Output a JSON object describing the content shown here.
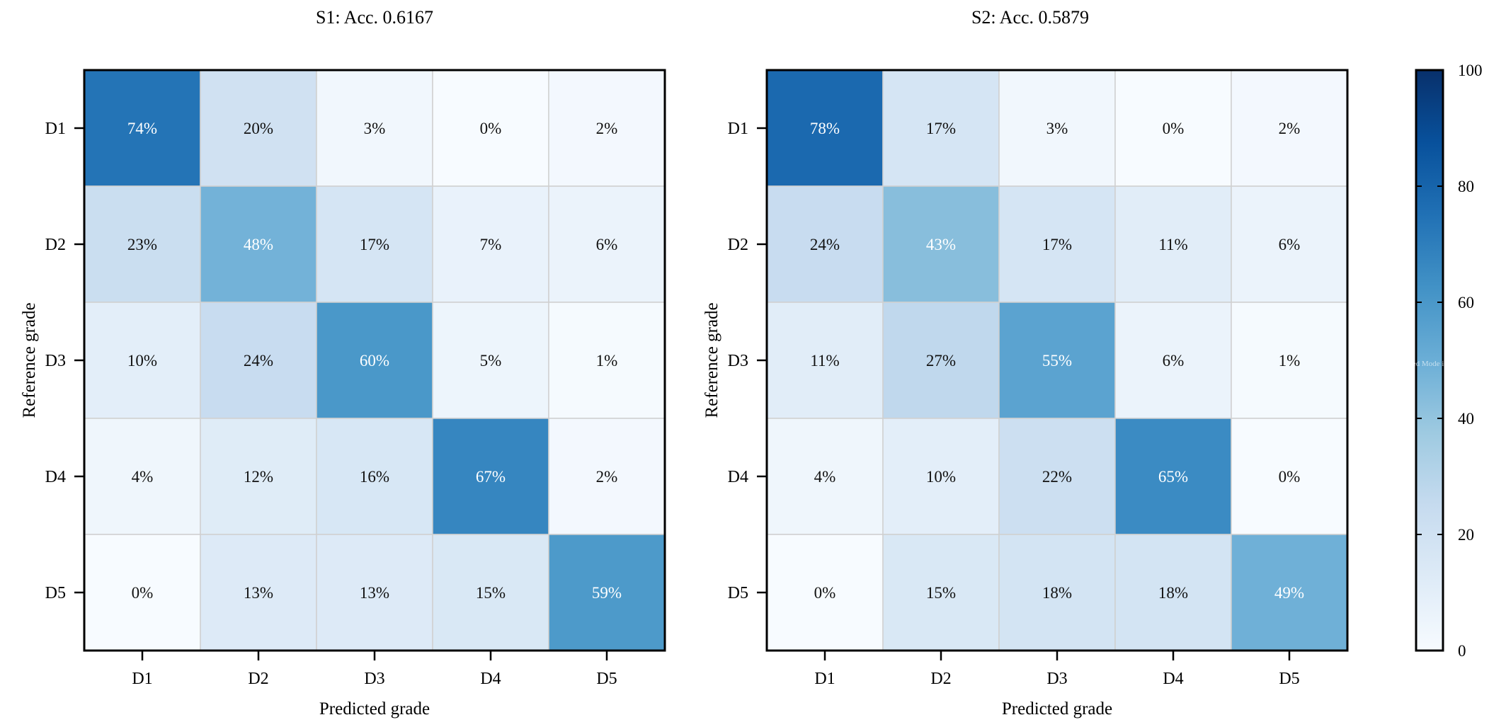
{
  "chart_data": [
    {
      "type": "heatmap",
      "title": "S1: Acc. 0.6167",
      "xlabel": "Predicted grade",
      "ylabel": "Reference grade",
      "x_categories": [
        "D1",
        "D2",
        "D3",
        "D4",
        "D5"
      ],
      "y_categories": [
        "D1",
        "D2",
        "D3",
        "D4",
        "D5"
      ],
      "values": [
        [
          74,
          20,
          3,
          0,
          2
        ],
        [
          23,
          48,
          17,
          7,
          6
        ],
        [
          10,
          24,
          60,
          5,
          1
        ],
        [
          4,
          12,
          16,
          67,
          2
        ],
        [
          0,
          13,
          13,
          15,
          59
        ]
      ],
      "value_suffix": "%"
    },
    {
      "type": "heatmap",
      "title": "S2: Acc. 0.5879",
      "xlabel": "Predicted grade",
      "ylabel": "Reference grade",
      "x_categories": [
        "D1",
        "D2",
        "D3",
        "D4",
        "D5"
      ],
      "y_categories": [
        "D1",
        "D2",
        "D3",
        "D4",
        "D5"
      ],
      "values": [
        [
          78,
          17,
          3,
          0,
          2
        ],
        [
          24,
          43,
          17,
          11,
          6
        ],
        [
          11,
          27,
          55,
          6,
          1
        ],
        [
          4,
          10,
          22,
          65,
          0
        ],
        [
          0,
          15,
          18,
          18,
          49
        ]
      ],
      "value_suffix": "%"
    }
  ],
  "colorbar": {
    "range": [
      0,
      100
    ],
    "ticks": [
      0,
      20,
      40,
      60,
      80,
      100
    ],
    "tick_labels": [
      "0",
      "20",
      "40",
      "60",
      "80",
      "100"
    ],
    "watermark": "Speed Mode is On",
    "colormap": "Blues",
    "color_stops": [
      "#f7fbff",
      "#deebf7",
      "#c6dbef",
      "#9ecae1",
      "#6baed6",
      "#4292c6",
      "#2171b5",
      "#08519c",
      "#08306b"
    ]
  }
}
